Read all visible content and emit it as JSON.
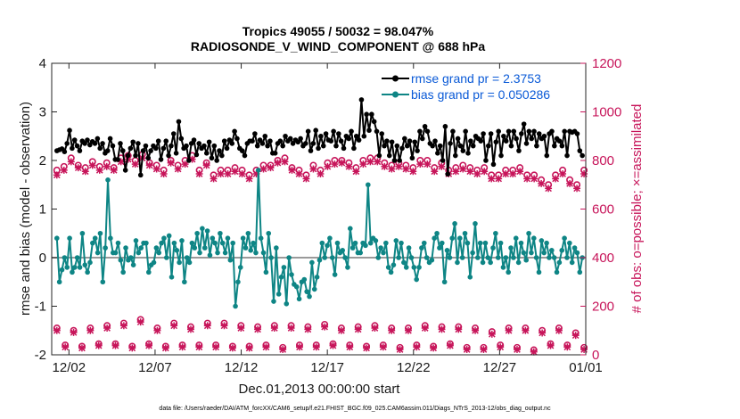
{
  "chart_data": {
    "type": "line",
    "title": "Tropics 49055 / 50032 = 98.047%",
    "subtitle": "RADIOSONDE_V_WIND_COMPONENT @ 688 hPa",
    "xlabel": "Dec.01,2013 00:00:00 start",
    "ylabel": "rmse and bias (model - observation)",
    "ylabel_right": "# of obs: o=possible; ×=assimilated",
    "ylim": [
      -2,
      4
    ],
    "ylim_right": [
      0,
      1200
    ],
    "yticks": [
      "-2",
      "-1",
      "0",
      "1",
      "2",
      "3",
      "4"
    ],
    "yticks_right": [
      "0",
      "200",
      "400",
      "600",
      "800",
      "1000",
      "1200"
    ],
    "xlim_days": [
      0.5,
      31.5
    ],
    "xticks": [
      {
        "day": 1.5,
        "label": "12/02"
      },
      {
        "day": 6.5,
        "label": "12/07"
      },
      {
        "day": 11.5,
        "label": "12/12"
      },
      {
        "day": 16.5,
        "label": "12/17"
      },
      {
        "day": 21.5,
        "label": "12/22"
      },
      {
        "day": 26.5,
        "label": "12/27"
      },
      {
        "day": 31.5,
        "label": "01/01"
      }
    ],
    "zero_line": 0,
    "colors": {
      "rmse": "#000000",
      "bias": "#0e8585",
      "counts": "#c7155a",
      "zero": "#9a9a9a",
      "legend_text": "#0a5ad7"
    },
    "series": [
      {
        "name": "rmse grand pr = 2.3753",
        "axis": "left",
        "values": [
          2.2,
          2.22,
          2.24,
          2.18,
          2.35,
          2.62,
          2.25,
          2.42,
          2.3,
          2.2,
          2.4,
          2.35,
          2.42,
          2.32,
          2.39,
          2.35,
          2.45,
          2.25,
          2.35,
          2.15,
          2.2,
          2.45,
          2.3,
          2.02,
          2.02,
          2.35,
          2.2,
          1.8,
          2.1,
          2.25,
          2.38,
          2.1,
          2.35,
          1.7,
          2.2,
          2.3,
          2.05,
          2.2,
          2.3,
          2.25,
          2.4,
          2.02,
          2.25,
          2.4,
          2.1,
          2.3,
          2.55,
          2.15,
          2.8,
          2.45,
          2.25,
          2.3,
          2.0,
          2.35,
          2.42,
          2.12,
          2.35,
          2.25,
          2.3,
          2.15,
          2.38,
          2.05,
          2.3,
          2.0,
          2.2,
          2.1,
          2.4,
          2.25,
          2.42,
          2.35,
          2.6,
          2.45,
          2.25,
          2.2,
          2.1,
          2.35,
          2.4,
          2.4,
          2.55,
          2.3,
          2.42,
          2.35,
          2.5,
          2.3,
          2.4,
          2.15,
          2.15,
          2.35,
          2.4,
          2.3,
          2.5,
          2.4,
          2.45,
          2.35,
          2.42,
          2.38,
          2.45,
          2.3,
          2.35,
          2.6,
          2.2,
          2.35,
          2.62,
          2.25,
          2.5,
          2.3,
          2.55,
          2.42,
          2.4,
          2.6,
          2.3,
          2.55,
          2.4,
          2.25,
          2.5,
          2.45,
          2.6,
          2.25,
          2.5,
          2.42,
          3.25,
          2.5,
          2.95,
          2.62,
          2.95,
          2.8,
          2.6,
          2.1,
          2.55,
          2.3,
          2.4,
          2.1,
          2.38,
          2.0,
          2.3,
          2.0,
          2.25,
          2.45,
          2.3,
          2.4,
          2.05,
          2.38,
          2.2,
          2.6,
          2.45,
          2.7,
          2.6,
          2.35,
          2.3,
          2.4,
          2.15,
          2.3,
          2.0,
          2.7,
          1.72,
          2.35,
          2.6,
          2.1,
          2.45,
          2.3,
          2.2,
          2.6,
          2.15,
          2.4,
          2.3,
          2.5,
          2.45,
          2.4,
          2.55,
          2.0,
          2.3,
          2.55,
          1.92,
          2.38,
          2.6,
          2.1,
          2.5,
          2.4,
          2.6,
          2.3,
          2.6,
          2.45,
          2.2,
          2.55,
          2.75,
          2.35,
          2.6,
          2.45,
          2.6,
          2.3,
          2.55,
          2.45,
          2.5,
          2.1,
          2.55,
          2.6,
          2.3,
          2.45,
          2.4,
          2.3,
          2.6,
          2.1,
          2.6,
          2.58,
          2.6,
          2.55,
          2.2,
          2.1
        ]
      },
      {
        "name": "bias grand pr = 0.050286",
        "axis": "left",
        "values": [
          0.4,
          -0.5,
          -0.25,
          0.0,
          -0.2,
          0.4,
          -0.3,
          -0.2,
          0.0,
          -0.2,
          0.5,
          -0.15,
          -0.3,
          -0.1,
          0.3,
          0.4,
          0.1,
          0.5,
          -0.5,
          0.2,
          1.6,
          0.4,
          0.1,
          0.1,
          0.3,
          -0.05,
          -0.3,
          0.2,
          -0.05,
          0.0,
          -0.15,
          0.35,
          0.1,
          0.2,
          0.3,
          0.3,
          -0.3,
          -0.15,
          -0.1,
          0.2,
          0.1,
          0.3,
          0.4,
          0.0,
          0.45,
          -0.4,
          0.3,
          0.15,
          -0.1,
          0.35,
          -0.5,
          0.0,
          -0.1,
          0.3,
          0.2,
          0.5,
          0.1,
          0.6,
          0.2,
          0.55,
          0.05,
          0.4,
          0.3,
          0.1,
          0.5,
          0.3,
          0.1,
          0.4,
          -0.05,
          0.3,
          -1.0,
          -0.5,
          -0.2,
          0.4,
          0.2,
          0.5,
          0.15,
          0.3,
          0.1,
          1.8,
          0.4,
          0.1,
          -0.3,
          0.5,
          0.0,
          -0.9,
          0.2,
          -0.75,
          -0.4,
          -0.2,
          -0.95,
          0.0,
          -0.35,
          -0.55,
          -0.6,
          -0.85,
          -0.5,
          -0.45,
          -0.7,
          -0.8,
          -0.1,
          -0.65,
          -0.4,
          -0.05,
          0.3,
          0.0,
          0.25,
          0.4,
          0.0,
          -0.35,
          0.3,
          0.1,
          0.15,
          0.0,
          -0.2,
          0.6,
          0.2,
          0.3,
          0.1,
          0.1,
          0.3,
          0.25,
          1.5,
          0.3,
          0.4,
          0.35,
          0.0,
          0.2,
          0.1,
          0.3,
          -0.2,
          -0.3,
          -0.15,
          0.35,
          0.0,
          0.3,
          -0.1,
          -0.2,
          0.2,
          0.0,
          -0.2,
          -0.45,
          -0.2,
          0.2,
          0.3,
          0.0,
          -0.1,
          -0.05,
          0.4,
          0.5,
          0.2,
          0.3,
          -0.5,
          0.15,
          0.0,
          0.4,
          0.7,
          -0.1,
          0.4,
          0.0,
          0.5,
          0.3,
          -0.4,
          0.1,
          0.7,
          0.0,
          0.3,
          -0.1,
          0.3,
          0.0,
          -0.1,
          0.2,
          0.5,
          0.0,
          0.3,
          -0.2,
          0.0,
          -0.3,
          0.2,
          0.0,
          0.4,
          -0.1,
          0.3,
          0.1,
          -0.05,
          0.5,
          0.1,
          0.4,
          0.0,
          -0.3,
          0.35,
          0.1,
          0.3,
          0.0,
          0.15,
          0.0,
          -0.3,
          -0.1,
          0.15,
          0.4,
          0.0,
          0.3,
          -0.1,
          0.2,
          0.1,
          -0.3,
          0.0
        ]
      },
      {
        "name": "obs possible (top band)",
        "axis": "right",
        "marker": "o",
        "values": [
          760,
          775,
          810,
          780,
          770,
          795,
          775,
          790,
          770,
          810,
          820,
          800,
          825,
          790,
          780,
          760,
          800,
          780,
          800,
          820,
          760,
          790,
          740,
          760,
          760,
          770,
          760,
          740,
          760,
          780,
          780,
          800,
          810,
          770,
          760,
          740,
          780,
          760,
          790,
          800,
          800,
          790,
          770,
          800,
          810,
          810,
          790,
          780,
          790,
          780,
          770,
          800,
          800,
          770,
          790,
          760,
          770,
          780,
          770,
          760,
          770,
          740,
          740,
          760,
          760,
          770,
          740,
          740,
          720,
          700,
          740,
          760,
          720,
          700,
          760
        ]
      },
      {
        "name": "obs assimilated (top band)",
        "axis": "right",
        "marker": "x",
        "values": [
          740,
          760,
          795,
          770,
          755,
          780,
          760,
          775,
          760,
          795,
          805,
          785,
          810,
          780,
          765,
          745,
          790,
          765,
          785,
          805,
          745,
          780,
          725,
          745,
          745,
          755,
          745,
          725,
          745,
          765,
          770,
          790,
          795,
          760,
          745,
          725,
          765,
          745,
          775,
          785,
          790,
          775,
          755,
          785,
          795,
          795,
          775,
          765,
          775,
          765,
          755,
          785,
          785,
          755,
          775,
          745,
          755,
          765,
          755,
          745,
          755,
          725,
          725,
          745,
          745,
          755,
          725,
          725,
          705,
          685,
          725,
          745,
          705,
          685,
          745
        ]
      },
      {
        "name": "obs possible (bottom band)",
        "axis": "right",
        "marker": "o",
        "values": [
          110,
          40,
          100,
          35,
          110,
          45,
          120,
          45,
          130,
          35,
          145,
          45,
          110,
          35,
          130,
          40,
          115,
          40,
          130,
          40,
          130,
          35,
          120,
          35,
          115,
          40,
          120,
          30,
          120,
          40,
          115,
          40,
          125,
          45,
          110,
          40,
          115,
          35,
          120,
          40,
          110,
          30,
          110,
          40,
          120,
          35,
          115,
          45,
          115,
          30,
          110,
          30,
          95,
          40,
          110,
          30,
          110,
          20,
          100,
          45,
          110,
          40,
          90,
          30
        ]
      },
      {
        "name": "obs assimilated (bottom band)",
        "axis": "right",
        "marker": "x",
        "values": [
          100,
          32,
          92,
          28,
          100,
          38,
          110,
          38,
          120,
          28,
          135,
          38,
          100,
          28,
          120,
          32,
          105,
          32,
          120,
          32,
          120,
          28,
          110,
          28,
          105,
          32,
          110,
          22,
          110,
          32,
          105,
          32,
          115,
          38,
          100,
          32,
          105,
          28,
          110,
          32,
          100,
          22,
          100,
          32,
          110,
          28,
          105,
          38,
          105,
          22,
          100,
          22,
          85,
          32,
          100,
          22,
          100,
          12,
          90,
          38,
          100,
          32,
          80,
          22
        ]
      }
    ]
  },
  "legend": {
    "rmse_label": "rmse grand pr = 2.3753",
    "bias_label": "bias grand pr = 0.050286"
  },
  "footer": {
    "text": "data file: /Users/raeder/DAI/ATM_forcXX/CAM6_setup/f.e21.FHIST_BGC.f09_025.CAM6assim.011/Diags_NTrS_2013-12/obs_diag_output.nc"
  }
}
